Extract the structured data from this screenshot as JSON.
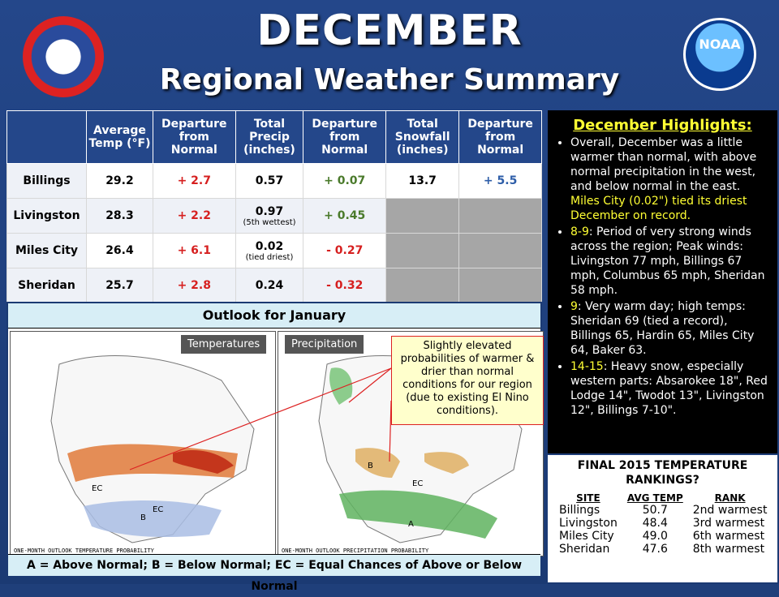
{
  "header": {
    "title": "DECEMBER",
    "subtitle": "Regional Weather Summary",
    "noaa_logo": "NOAA",
    "nws_logo": "NATIONAL WEATHER SERVICE"
  },
  "stats_table": {
    "headers": [
      "Average Temp (°F)",
      "Departure from Normal",
      "Total Precip (inches)",
      "Departure from Normal",
      "Total Snowfall (inches)",
      "Departure from Normal"
    ],
    "rows": [
      {
        "site": "Billings",
        "avg_temp": "29.2",
        "temp_dep": "+ 2.7",
        "precip": "0.57",
        "precip_note": "",
        "precip_dep": "+ 0.07",
        "snow": "13.7",
        "snow_dep": "+ 5.5"
      },
      {
        "site": "Livingston",
        "avg_temp": "28.3",
        "temp_dep": "+ 2.2",
        "precip": "0.97",
        "precip_note": "(5th wettest)",
        "precip_dep": "+ 0.45",
        "snow": "",
        "snow_dep": ""
      },
      {
        "site": "Miles City",
        "avg_temp": "26.4",
        "temp_dep": "+ 6.1",
        "precip": "0.02",
        "precip_note": "(tied driest)",
        "precip_dep": "- 0.27",
        "snow": "",
        "snow_dep": ""
      },
      {
        "site": "Sheridan",
        "avg_temp": "25.7",
        "temp_dep": "+ 2.8",
        "precip": "0.24",
        "precip_note": "",
        "precip_dep": "- 0.32",
        "snow": "",
        "snow_dep": ""
      }
    ]
  },
  "highlights": {
    "title": "December Highlights:",
    "items": [
      {
        "lead": "",
        "text": "Overall, December was a little warmer than normal, with above normal precipitation in the west, and below normal in the east.",
        "tail": "Miles City (0.02\") tied its driest December on record."
      },
      {
        "lead": "8-9",
        "text": ": Period of very strong winds across the region; Peak winds: Livingston 77 mph, Billings 67 mph, Columbus 65 mph, Sheridan 58 mph.",
        "tail": ""
      },
      {
        "lead": "9",
        "text": ": Very warm day; high temps: Sheridan 69 (tied a record), Billings 65, Hardin 65, Miles City 64, Baker 63.",
        "tail": ""
      },
      {
        "lead": "14-15",
        "text": ": Heavy snow, especially western parts: Absarokee 18\", Red Lodge 14\", Twodot 13\", Livingston 12\", Billings 7-10\".",
        "tail": ""
      }
    ]
  },
  "rankings": {
    "title": "FINAL 2015 TEMPERATURE RANKINGS?",
    "headers": [
      "SITE",
      "AVG TEMP",
      "RANK"
    ],
    "rows": [
      {
        "site": "Billings",
        "temp": "50.7",
        "rank": "2nd warmest"
      },
      {
        "site": "Livingston",
        "temp": "48.4",
        "rank": "3rd warmest"
      },
      {
        "site": "Miles City",
        "temp": "49.0",
        "rank": "6th warmest"
      },
      {
        "site": "Sheridan",
        "temp": "47.6",
        "rank": "8th warmest"
      }
    ]
  },
  "outlook": {
    "title": "Outlook for January",
    "temp_label": "Temperatures",
    "precip_label": "Precipitation",
    "temp_caption": "ONE-MONTH OUTLOOK TEMPERATURE PROBABILITY",
    "precip_caption": "ONE-MONTH OUTLOOK PRECIPITATION PROBABILITY",
    "callout": "Slightly elevated probabilities of warmer & drier than normal conditions for our region (due to existing El Nino conditions).",
    "legend": "A = Above Normal;  B = Below Normal;  EC = Equal Chances of Above or Below Normal"
  },
  "colors": {
    "accent_red": "#d61f1f",
    "accent_green": "#4a7a2b",
    "accent_blue": "#2d5da8",
    "highlight_yellow": "#ffff33"
  }
}
